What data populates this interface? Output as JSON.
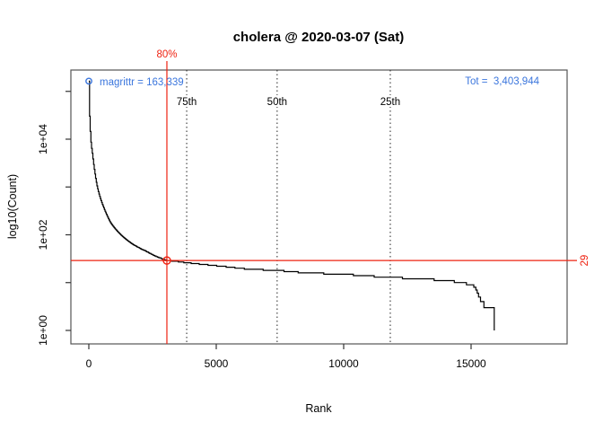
{
  "title": "cholera @ 2020-03-07 (Sat)",
  "xlabel": "Rank",
  "ylabel": "log10(Count)",
  "annotations": {
    "top_package": "magrittr = 163,339",
    "total": "Tot =  3,403,944",
    "threshold_percent": "80%",
    "threshold_count": "29"
  },
  "colors": {
    "accent_blue": "#3b76dd",
    "accent_red": "#ee2211",
    "curve": "#000000",
    "box": "#555555",
    "dotted": "#222222"
  },
  "chart_data": {
    "type": "line",
    "title": "cholera @ 2020-03-07 (Sat)",
    "xlabel": "Rank",
    "ylabel": "log10(Count)",
    "x_axis": "package download rank",
    "y_axis": "download count, log10 scale",
    "xlim": [
      -704,
      18768
    ],
    "ylim_log10": [
      -0.282,
      5.446
    ],
    "grid": "off",
    "x_ticks": [
      {
        "label": "0",
        "value": 0
      },
      {
        "label": "5000",
        "value": 5000
      },
      {
        "label": "10000",
        "value": 10000
      },
      {
        "label": "15000",
        "value": 15000
      }
    ],
    "y_ticks_major": [
      {
        "label": "1e+00",
        "value": 1
      },
      {
        "label": "1e+02",
        "value": 100
      },
      {
        "label": "1e+04",
        "value": 10000
      }
    ],
    "y_ticks_minor": [
      10,
      1000,
      100000
    ],
    "top_package": {
      "name": "magrittr",
      "rank": 1,
      "count": 163339
    },
    "total_downloads": 3403944,
    "threshold": {
      "percent": 80,
      "rank": 3063,
      "count": 29
    },
    "percentiles": [
      {
        "label": "75th",
        "rank": 3840
      },
      {
        "label": "50th",
        "rank": 7390
      },
      {
        "label": "25th",
        "rank": 11830
      }
    ],
    "series": [
      {
        "name": "downloads-by-rank",
        "points": [
          [
            1,
            163339
          ],
          [
            2,
            120000
          ],
          [
            4,
            80000
          ],
          [
            8,
            57000
          ],
          [
            15,
            40000
          ],
          [
            35,
            27000
          ],
          [
            70,
            10000
          ],
          [
            141,
            4800
          ],
          [
            220,
            2200
          ],
          [
            317,
            1060
          ],
          [
            430,
            620
          ],
          [
            563,
            390
          ],
          [
            700,
            260
          ],
          [
            845,
            180
          ],
          [
            1050,
            130
          ],
          [
            1268,
            98
          ],
          [
            1500,
            77
          ],
          [
            1725,
            63
          ],
          [
            2000,
            52
          ],
          [
            2254,
            45
          ],
          [
            2600,
            36
          ],
          [
            3063,
            29
          ],
          [
            3400,
            28
          ],
          [
            3838,
            26
          ],
          [
            4500,
            24
          ],
          [
            5211,
            22
          ],
          [
            6303,
            19
          ],
          [
            7390,
            18
          ],
          [
            8500,
            16
          ],
          [
            10000,
            15
          ],
          [
            11655,
            13
          ],
          [
            13000,
            12
          ],
          [
            14120,
            11
          ],
          [
            15070,
            9
          ],
          [
            15200,
            7
          ],
          [
            15300,
            5
          ],
          [
            15450,
            4
          ],
          [
            15530,
            3
          ],
          [
            15905,
            3
          ],
          [
            15908,
            1
          ]
        ]
      }
    ]
  }
}
